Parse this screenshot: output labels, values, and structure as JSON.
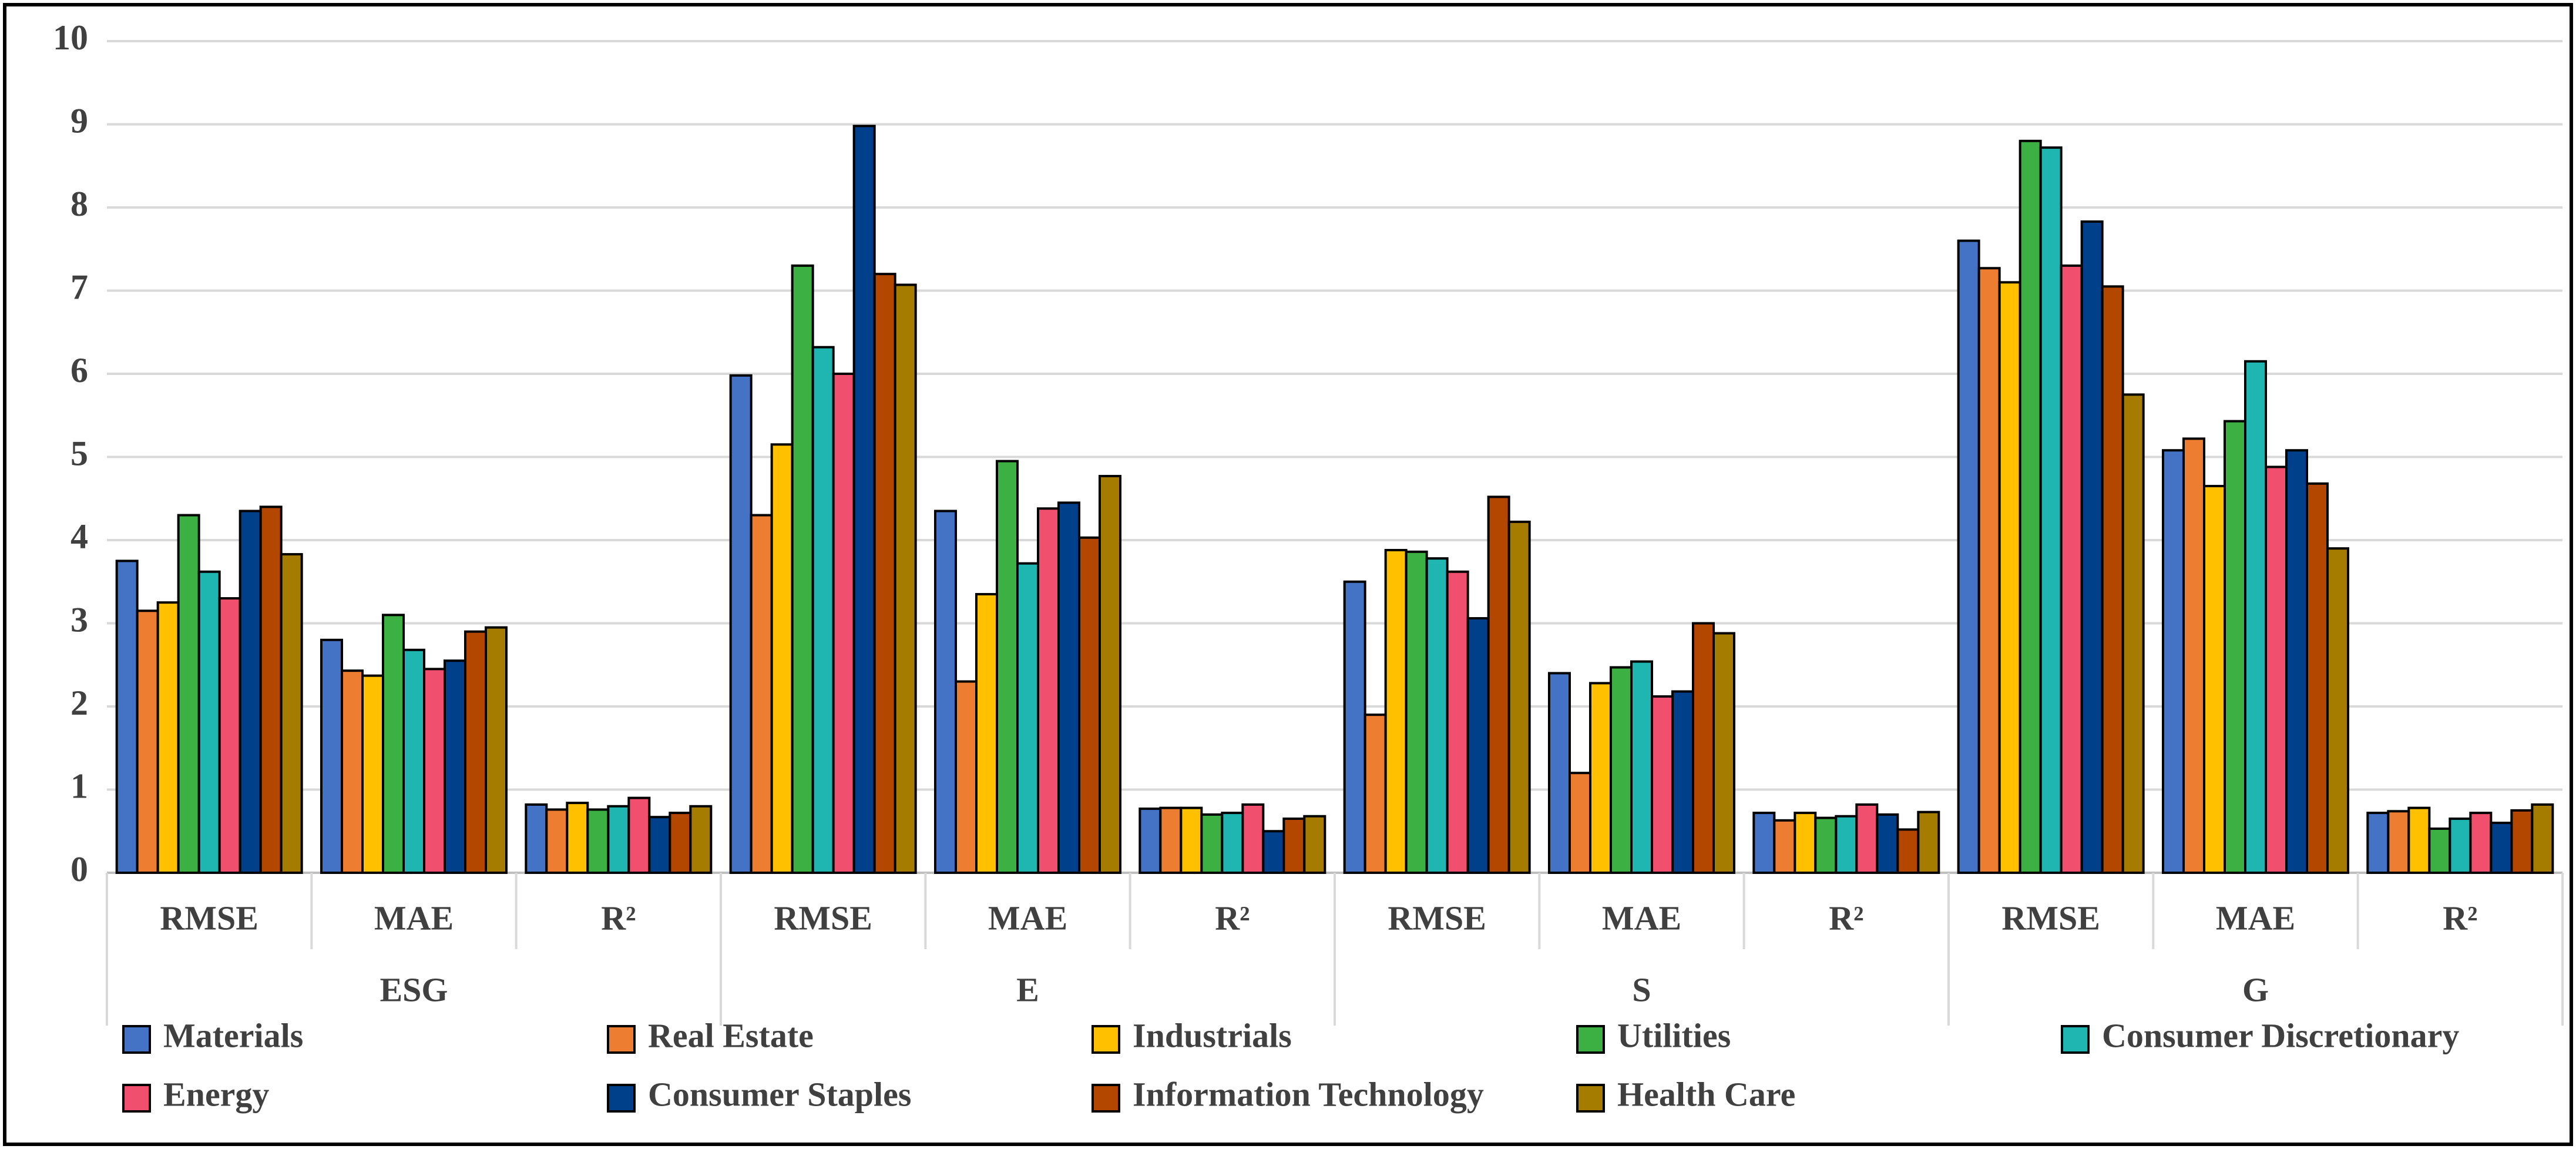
{
  "chart_data": {
    "type": "bar",
    "groups": [
      "ESG",
      "E",
      "S",
      "G"
    ],
    "categories": [
      "RMSE",
      "MAE",
      "R²",
      "RMSE",
      "MAE",
      "R²",
      "RMSE",
      "MAE",
      "R²",
      "RMSE",
      "MAE",
      "R²"
    ],
    "series": [
      {
        "name": "Materials",
        "color": "#4472c4",
        "values": [
          3.75,
          2.8,
          0.82,
          5.98,
          4.35,
          0.77,
          3.5,
          2.4,
          0.72,
          7.6,
          5.08,
          0.72
        ]
      },
      {
        "name": "Real Estate",
        "color": "#ed7d31",
        "values": [
          3.15,
          2.43,
          0.76,
          4.3,
          2.3,
          0.78,
          1.9,
          1.2,
          0.63,
          7.27,
          5.22,
          0.74
        ]
      },
      {
        "name": "Industrials",
        "color": "#ffc000",
        "values": [
          3.25,
          2.37,
          0.84,
          5.15,
          3.35,
          0.78,
          3.88,
          2.28,
          0.72,
          7.1,
          4.65,
          0.78
        ]
      },
      {
        "name": "Utilities",
        "color": "#3cb043",
        "values": [
          4.3,
          3.1,
          0.76,
          7.3,
          4.95,
          0.7,
          3.86,
          2.47,
          0.66,
          8.8,
          5.43,
          0.53
        ]
      },
      {
        "name": "Consumer Discretionary",
        "color": "#1fb5b0",
        "values": [
          3.62,
          2.68,
          0.8,
          6.32,
          3.72,
          0.72,
          3.78,
          2.54,
          0.68,
          8.72,
          6.15,
          0.65
        ]
      },
      {
        "name": "Energy",
        "color": "#f0506e",
        "values": [
          3.3,
          2.45,
          0.9,
          6.0,
          4.38,
          0.82,
          3.62,
          2.12,
          0.82,
          7.3,
          4.88,
          0.72
        ]
      },
      {
        "name": "Consumer Staples",
        "color": "#003f8a",
        "values": [
          4.35,
          2.55,
          0.67,
          8.98,
          4.45,
          0.5,
          3.06,
          2.18,
          0.7,
          7.83,
          5.08,
          0.6
        ]
      },
      {
        "name": "Information Technology",
        "color": "#b34700",
        "values": [
          4.4,
          2.9,
          0.72,
          7.2,
          4.03,
          0.65,
          4.52,
          3.0,
          0.52,
          7.05,
          4.68,
          0.75
        ]
      },
      {
        "name": "Health Care",
        "color": "#a67c00",
        "values": [
          3.83,
          2.95,
          0.8,
          7.07,
          4.77,
          0.68,
          4.22,
          2.88,
          0.73,
          5.75,
          3.9,
          0.82
        ]
      }
    ],
    "ylim": [
      0,
      10
    ],
    "yticks": [
      0,
      1,
      2,
      3,
      4,
      5,
      6,
      7,
      8,
      9,
      10
    ],
    "grid": true
  }
}
